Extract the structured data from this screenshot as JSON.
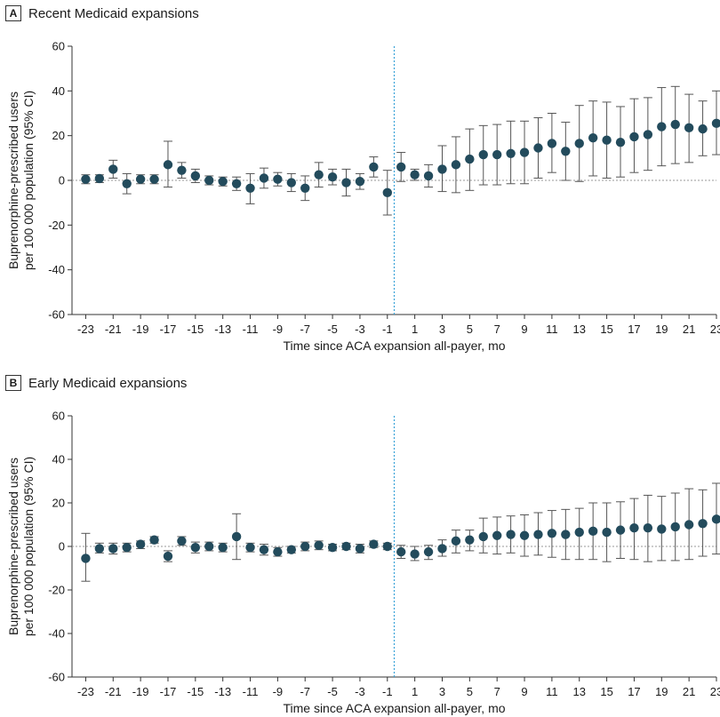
{
  "chart_data": [
    {
      "type": "scatter",
      "panel_letter": "A",
      "title": "Recent Medicaid expansions",
      "xlabel": "Time since ACA expansion all-payer, mo",
      "ylabel": [
        "Buprenorphine-prescribed users",
        "per 100 000 population (95% CI)"
      ],
      "xlim": [
        -24,
        23
      ],
      "ylim": [
        -60,
        60
      ],
      "yticks": [
        60,
        40,
        20,
        0,
        -20,
        -40,
        -60
      ],
      "xtick_labels": [
        "-23",
        "-21",
        "-19",
        "-17",
        "-15",
        "-13",
        "-11",
        "-9",
        "-7",
        "-5",
        "-3",
        "-1",
        "1",
        "3",
        "5",
        "7",
        "9",
        "11",
        "13",
        "15",
        "17",
        "19",
        "21",
        "23"
      ],
      "reference_line_x": -0.5,
      "zero_line": true,
      "x": [
        -23,
        -22,
        -21,
        -20,
        -19,
        -18,
        -17,
        -16,
        -15,
        -14,
        -13,
        -12,
        -11,
        -10,
        -9,
        -8,
        -7,
        -6,
        -5,
        -4,
        -3,
        -2,
        -1,
        0,
        1,
        2,
        3,
        4,
        5,
        6,
        7,
        8,
        9,
        10,
        11,
        12,
        13,
        14,
        15,
        16,
        17,
        18,
        19,
        20,
        21,
        22,
        23
      ],
      "y": [
        0.5,
        0.8,
        5,
        -1.5,
        0.5,
        0.5,
        7,
        4.5,
        2,
        0,
        -0.5,
        -1.5,
        -3.5,
        1,
        0.5,
        -1,
        -3.5,
        2.5,
        1.5,
        -1,
        -0.5,
        6,
        -5.5,
        6,
        2.5,
        2,
        5,
        7,
        9.5,
        11.5,
        11.5,
        12,
        12.5,
        14.5,
        16.5,
        13,
        16.5,
        19,
        18,
        17,
        19.5,
        20.5,
        24,
        25,
        23.5,
        23,
        25.5
      ],
      "lower": [
        -1.5,
        -1,
        1,
        -6,
        -1.5,
        -1.5,
        -3,
        1,
        -1,
        -2,
        -2.5,
        -4.5,
        -10.5,
        -3.5,
        -2.5,
        -5,
        -9,
        -3,
        -2,
        -7,
        -4,
        1.5,
        -15.5,
        -0.5,
        0,
        -3,
        -5,
        -5.5,
        -4.5,
        -2,
        -2,
        -1.5,
        -1.5,
        1,
        3.5,
        0,
        -0.5,
        2,
        1,
        1.5,
        3.5,
        4.5,
        6.5,
        7.5,
        8,
        11,
        11.5
      ],
      "upper": [
        2.5,
        2.5,
        9,
        3,
        2.5,
        2.5,
        17.5,
        8,
        5,
        2,
        1.5,
        1.5,
        3,
        5.5,
        3.5,
        3,
        2,
        8,
        5,
        5,
        3,
        10.5,
        4.5,
        12.5,
        5,
        7,
        15.5,
        19.5,
        23,
        24.5,
        25,
        26.5,
        26.5,
        28,
        30,
        26,
        33.5,
        35.5,
        35,
        33,
        36.5,
        37,
        41.5,
        42,
        38.5,
        35.5,
        40
      ]
    },
    {
      "type": "scatter",
      "panel_letter": "B",
      "title": "Early Medicaid expansions",
      "xlabel": "Time since ACA expansion all-payer, mo",
      "ylabel": [
        "Buprenorphine-prescribed users",
        "per 100 000 population (95% CI)"
      ],
      "xlim": [
        -24,
        23
      ],
      "ylim": [
        -60,
        60
      ],
      "yticks": [
        60,
        40,
        20,
        0,
        -20,
        -40,
        -60
      ],
      "xtick_labels": [
        "-23",
        "-21",
        "-19",
        "-17",
        "-15",
        "-13",
        "-11",
        "-9",
        "-7",
        "-5",
        "-3",
        "-1",
        "1",
        "3",
        "5",
        "7",
        "9",
        "11",
        "13",
        "15",
        "17",
        "19",
        "21",
        "23"
      ],
      "reference_line_x": -0.5,
      "zero_line": true,
      "x": [
        -23,
        -22,
        -21,
        -20,
        -19,
        -18,
        -17,
        -16,
        -15,
        -14,
        -13,
        -12,
        -11,
        -10,
        -9,
        -8,
        -7,
        -6,
        -5,
        -4,
        -3,
        -2,
        -1,
        0,
        1,
        2,
        3,
        4,
        5,
        6,
        7,
        8,
        9,
        10,
        11,
        12,
        13,
        14,
        15,
        16,
        17,
        18,
        19,
        20,
        21,
        22,
        23
      ],
      "y": [
        -5.5,
        -1,
        -1,
        -0.5,
        1,
        3,
        -4.5,
        2.5,
        -0.5,
        0,
        -0.5,
        4.5,
        -0.5,
        -1.5,
        -2.5,
        -1.5,
        0,
        0.5,
        -0.5,
        0,
        -1,
        1,
        0,
        -2.5,
        -3.5,
        -2.5,
        -1,
        2.5,
        3,
        4.5,
        5,
        5.5,
        5,
        5.5,
        6,
        5.5,
        6.5,
        7,
        6.5,
        7.5,
        8.5,
        8.5,
        8,
        9,
        10,
        10.5,
        12.5
      ],
      "lower": [
        -16,
        -3,
        -3.5,
        -2.5,
        -1,
        1.5,
        -7,
        0.5,
        -3,
        -2,
        -2.5,
        -6,
        -2.5,
        -4,
        -4.5,
        -3,
        -2,
        -1.5,
        -2,
        -1.5,
        -3,
        -0.5,
        -1.5,
        -5.5,
        -6.5,
        -6,
        -4.5,
        -3,
        -2,
        -3,
        -3.5,
        -3,
        -4.5,
        -4,
        -5,
        -6,
        -6,
        -6,
        -7,
        -5.5,
        -6,
        -7,
        -6.5,
        -6.5,
        -6,
        -4.5,
        -3.5
      ],
      "upper": [
        6,
        1.5,
        1.5,
        1.5,
        2.5,
        4.5,
        -2,
        4.5,
        2,
        2,
        1.5,
        15,
        1.5,
        1,
        -0.5,
        0,
        2,
        2.5,
        1,
        1.5,
        1,
        2.5,
        1.5,
        0.5,
        0,
        0.5,
        3,
        7.5,
        7.5,
        13,
        13.5,
        14,
        14.5,
        15.5,
        16.5,
        17,
        17.5,
        20,
        20,
        20.5,
        22,
        23.5,
        23,
        24.5,
        26.5,
        26,
        29
      ]
    }
  ],
  "colors": {
    "marker": "#234b5c",
    "errorbar": "#555555",
    "reference_line": "#3ba3d8",
    "zero_line": "#9a9a9a",
    "axis": "#333333"
  }
}
